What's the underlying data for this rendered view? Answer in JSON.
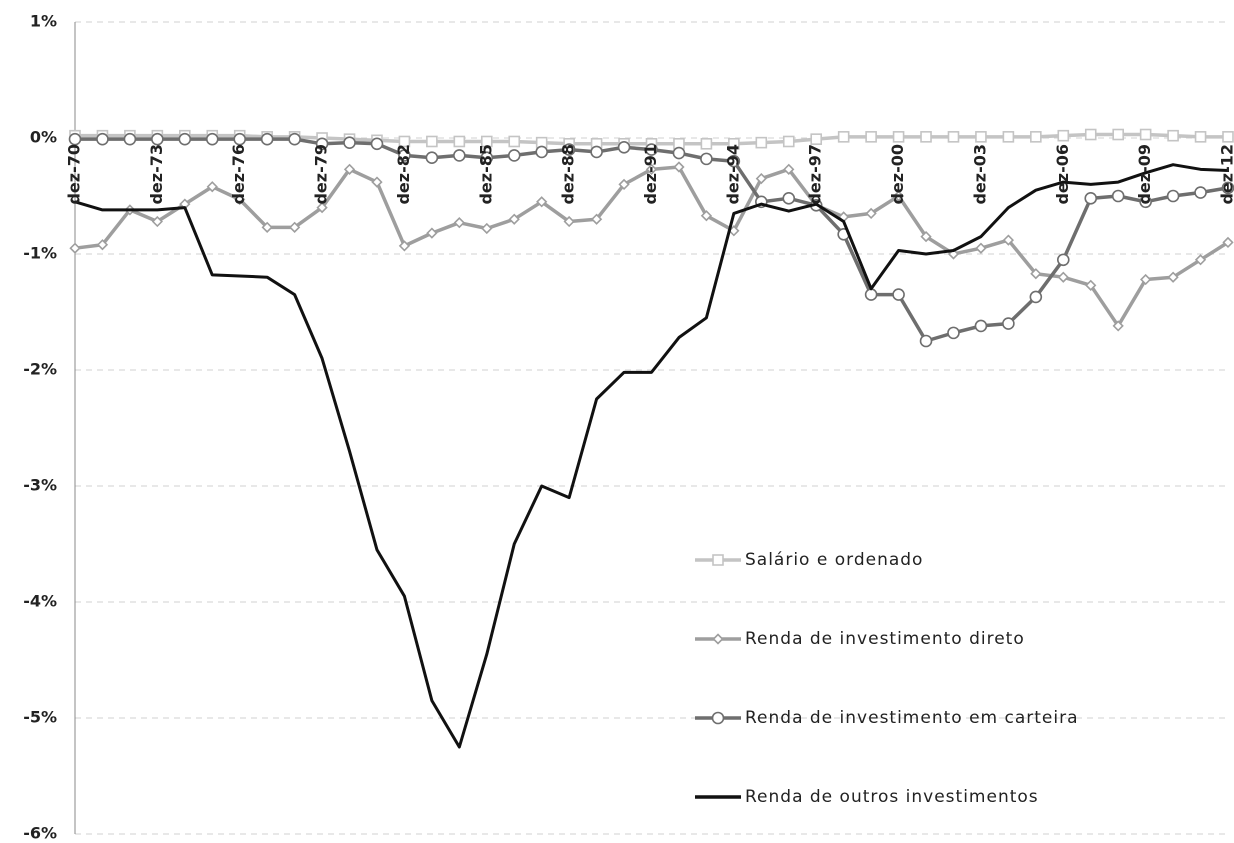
{
  "chart_data": {
    "type": "line",
    "categories": [
      "dez-70",
      null,
      null,
      "dez-73",
      null,
      null,
      "dez-76",
      null,
      null,
      "dez-79",
      null,
      null,
      "dez-82",
      null,
      null,
      "dez-85",
      null,
      null,
      "dez-88",
      null,
      null,
      "dez-91",
      null,
      null,
      "dez-94",
      null,
      null,
      "dez-97",
      null,
      null,
      "dez-00",
      null,
      null,
      "dez-03",
      null,
      null,
      "dez-06",
      null,
      null,
      "dez-09",
      null,
      null,
      "dez-12"
    ],
    "series": [
      {
        "name": "Salário e ordenado",
        "color": "#c4c4c4",
        "marker": "square",
        "values": [
          0.02,
          0.02,
          0.02,
          0.02,
          0.02,
          0.02,
          0.02,
          0.01,
          0.01,
          0,
          -0.01,
          -0.02,
          -0.03,
          -0.03,
          -0.03,
          -0.03,
          -0.03,
          -0.04,
          -0.05,
          -0.05,
          -0.05,
          -0.05,
          -0.05,
          -0.05,
          -0.05,
          -0.04,
          -0.03,
          -0.01,
          0.01,
          0.01,
          0.01,
          0.01,
          0.01,
          0.01,
          0.01,
          0.01,
          0.02,
          0.03,
          0.03,
          0.03,
          0.02,
          0.01,
          0.01
        ]
      },
      {
        "name": "Renda de investimento direto",
        "color": "#9e9e9e",
        "marker": "diamond",
        "values": [
          -0.95,
          -0.92,
          -0.62,
          -0.72,
          -0.57,
          -0.42,
          -0.53,
          -0.77,
          -0.77,
          -0.6,
          -0.27,
          -0.38,
          -0.93,
          -0.82,
          -0.73,
          -0.78,
          -0.7,
          -0.55,
          -0.72,
          -0.7,
          -0.4,
          -0.27,
          -0.25,
          -0.67,
          -0.8,
          -0.35,
          -0.27,
          -0.58,
          -0.68,
          -0.65,
          -0.5,
          -0.85,
          -1.0,
          -0.95,
          -0.88,
          -1.17,
          -1.2,
          -1.27,
          -1.62,
          -1.22,
          -1.2,
          -1.05,
          -0.9
        ]
      },
      {
        "name": "Renda de investimento em carteira",
        "color": "#6e6e6e",
        "marker": "circle",
        "values": [
          -0.01,
          -0.01,
          -0.01,
          -0.01,
          -0.01,
          -0.01,
          -0.01,
          -0.01,
          -0.01,
          -0.05,
          -0.04,
          -0.05,
          -0.15,
          -0.17,
          -0.15,
          -0.17,
          -0.15,
          -0.12,
          -0.1,
          -0.12,
          -0.08,
          -0.1,
          -0.13,
          -0.18,
          -0.2,
          -0.55,
          -0.52,
          -0.58,
          -0.83,
          -1.35,
          -1.35,
          -1.75,
          -1.68,
          -1.62,
          -1.6,
          -1.37,
          -1.05,
          -0.52,
          -0.5,
          -0.55,
          -0.5,
          -0.47,
          -0.43
        ]
      },
      {
        "name": "Renda de outros investimentos",
        "color": "#111111",
        "marker": "none",
        "values": [
          -0.55,
          -0.62,
          -0.62,
          -0.62,
          -0.6,
          -1.18,
          -1.19,
          -1.2,
          -1.35,
          -1.9,
          -2.7,
          -3.55,
          -3.95,
          -4.85,
          -5.25,
          -4.45,
          -3.5,
          -3.0,
          -3.1,
          -2.25,
          -2.02,
          -2.02,
          -1.72,
          -1.55,
          -0.65,
          -0.57,
          -0.63,
          -0.57,
          -0.72,
          -1.3,
          -0.97,
          -1.0,
          -0.97,
          -0.85,
          -0.6,
          -0.45,
          -0.38,
          -0.4,
          -0.38,
          -0.3,
          -0.23,
          -0.27,
          -0.28
        ]
      }
    ],
    "ylim": [
      -6,
      1
    ],
    "yticks": [
      {
        "value": 1,
        "label": "1%"
      },
      {
        "value": 0,
        "label": "0%"
      },
      {
        "value": -1,
        "label": "-1%"
      },
      {
        "value": -2,
        "label": "-2%"
      },
      {
        "value": -3,
        "label": "-3%"
      },
      {
        "value": -4,
        "label": "-4%"
      },
      {
        "value": -5,
        "label": "-5%"
      },
      {
        "value": -6,
        "label": "-6%"
      }
    ],
    "grid": true,
    "legend": "lower right"
  }
}
